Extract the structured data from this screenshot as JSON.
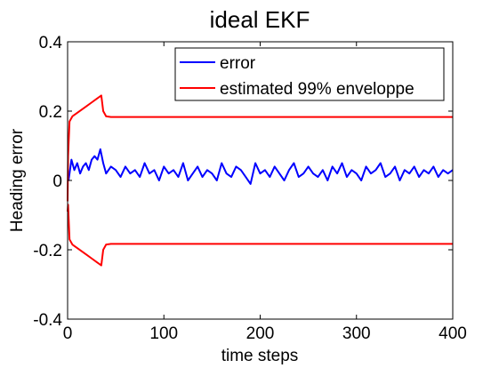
{
  "chart_data": {
    "type": "line",
    "title": "ideal EKF",
    "xlabel": "time steps",
    "ylabel": "Heading error",
    "xlim": [
      0,
      400
    ],
    "ylim": [
      -0.4,
      0.4
    ],
    "xticks": [
      0,
      100,
      200,
      300,
      400
    ],
    "yticks": [
      -0.4,
      -0.2,
      0,
      0.2,
      0.4
    ],
    "xtick_labels": [
      "0",
      "100",
      "200",
      "300",
      "400"
    ],
    "ytick_labels": [
      "-0.4",
      "-0.2",
      "0",
      "0.2",
      "0.4"
    ],
    "grid": false,
    "legend_location": "top-right",
    "series": [
      {
        "name": "error",
        "color": "#0000ff",
        "x": [
          1,
          4,
          7,
          10,
          13,
          16,
          19,
          22,
          25,
          28,
          31,
          34,
          37,
          40,
          45,
          50,
          55,
          60,
          65,
          70,
          75,
          80,
          85,
          90,
          95,
          100,
          105,
          110,
          115,
          120,
          125,
          130,
          135,
          140,
          145,
          150,
          155,
          160,
          165,
          170,
          175,
          180,
          185,
          190,
          195,
          200,
          205,
          210,
          215,
          220,
          225,
          230,
          235,
          240,
          245,
          250,
          255,
          260,
          265,
          270,
          275,
          280,
          285,
          290,
          295,
          300,
          305,
          310,
          315,
          320,
          325,
          330,
          335,
          340,
          345,
          350,
          355,
          360,
          365,
          370,
          375,
          380,
          385,
          390,
          395,
          400
        ],
        "values": [
          0.0,
          0.06,
          0.03,
          0.05,
          0.02,
          0.04,
          0.05,
          0.03,
          0.06,
          0.07,
          0.06,
          0.09,
          0.05,
          0.02,
          0.04,
          0.03,
          0.01,
          0.04,
          0.02,
          0.03,
          0.01,
          0.05,
          0.02,
          0.03,
          0.0,
          0.04,
          0.02,
          0.03,
          0.01,
          0.05,
          0.0,
          0.02,
          0.04,
          0.01,
          0.03,
          0.02,
          0.0,
          0.05,
          0.02,
          0.01,
          0.04,
          0.03,
          0.01,
          -0.01,
          0.05,
          0.02,
          0.03,
          0.01,
          0.04,
          0.02,
          0.0,
          0.03,
          0.05,
          0.01,
          0.02,
          0.04,
          0.02,
          0.01,
          0.03,
          0.0,
          0.04,
          0.02,
          0.05,
          0.01,
          0.03,
          0.02,
          0.0,
          0.04,
          0.02,
          0.03,
          0.05,
          0.01,
          0.02,
          0.04,
          0.0,
          0.03,
          0.02,
          0.04,
          0.01,
          0.03,
          0.02,
          0.04,
          0.01,
          0.03,
          0.02,
          0.03
        ]
      },
      {
        "name": "estimated 99% enveloppe",
        "color": "#ff0000",
        "x": [
          0,
          0.5,
          2,
          5,
          10,
          15,
          20,
          25,
          30,
          35,
          37,
          40,
          45,
          50,
          100,
          200,
          300,
          400
        ],
        "values": [
          -0.06,
          0.07,
          0.17,
          0.185,
          0.195,
          0.205,
          0.215,
          0.225,
          0.235,
          0.245,
          0.2,
          0.185,
          0.183,
          0.183,
          0.183,
          0.183,
          0.183,
          0.183
        ]
      },
      {
        "name": "",
        "color": "#ff0000",
        "x": [
          0,
          0.5,
          2,
          5,
          10,
          15,
          20,
          25,
          30,
          35,
          37,
          40,
          45,
          50,
          100,
          200,
          300,
          400
        ],
        "values": [
          -0.09,
          -0.07,
          -0.17,
          -0.185,
          -0.195,
          -0.205,
          -0.215,
          -0.225,
          -0.235,
          -0.245,
          -0.2,
          -0.185,
          -0.183,
          -0.183,
          -0.183,
          -0.183,
          -0.183,
          -0.183
        ]
      }
    ]
  }
}
